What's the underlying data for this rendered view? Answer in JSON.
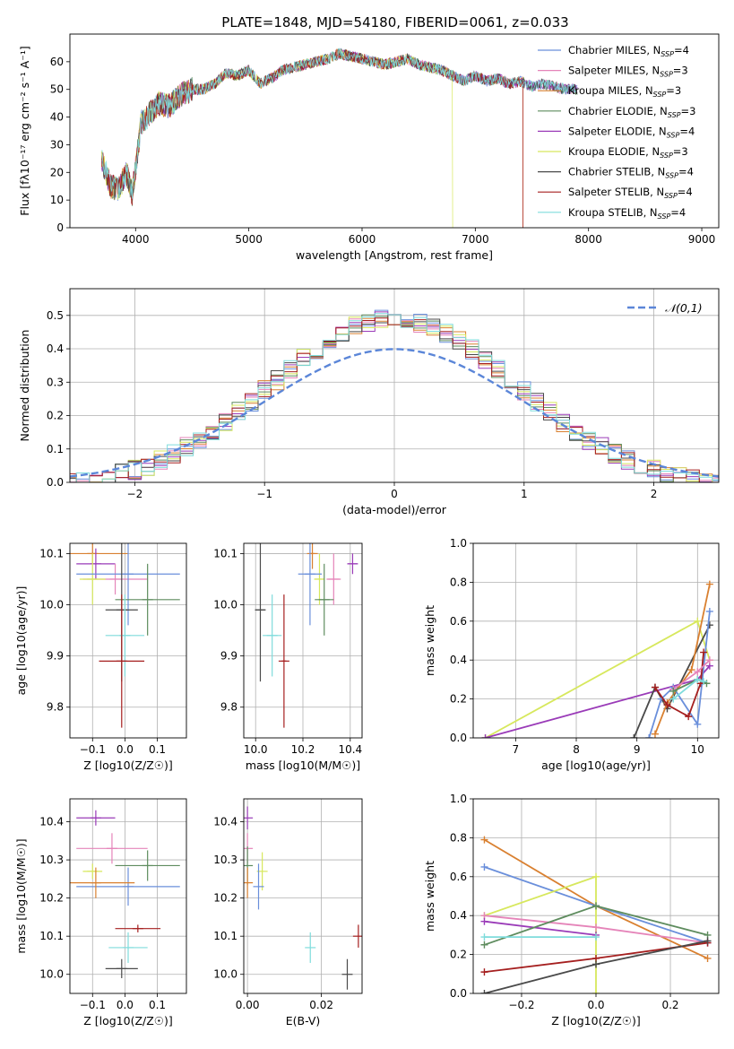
{
  "figure": {
    "title": "PLATE=1848, MJD=54180, FIBERID=0061, z=0.033"
  },
  "chart_data": [
    {
      "id": "spectrum",
      "type": "line",
      "xlabel": "wavelength [Angstrom, rest frame]",
      "ylabel": "Flux [fλ10⁻¹⁷ erg cm⁻² s⁻¹ A⁻¹]",
      "xlim": [
        3420,
        9150
      ],
      "ylim": [
        0,
        70
      ],
      "xticks": [
        4000,
        5000,
        6000,
        7000,
        8000,
        9000
      ],
      "yticks": [
        0,
        10,
        20,
        30,
        40,
        50,
        60
      ],
      "grid": false,
      "legend": "top-right",
      "anchors_x": [
        3700,
        3780,
        3850,
        3920,
        3970,
        4050,
        4100,
        4200,
        4300,
        4400,
        4500,
        4600,
        4700,
        4800,
        4900,
        5000,
        5100,
        5200,
        5300,
        5400,
        5500,
        5600,
        5700,
        5800,
        5900,
        6000,
        6100,
        6200,
        6300,
        6400,
        6500,
        6600,
        6700,
        6800,
        6900,
        7000,
        7100,
        7200,
        7300,
        7400,
        7500,
        7600,
        7700,
        7800,
        7900
      ],
      "anchors_y": [
        25,
        15,
        14,
        20,
        12,
        38,
        40,
        45,
        44,
        48,
        50,
        50,
        52,
        56,
        55,
        57,
        52,
        54,
        57,
        58,
        59,
        60,
        61,
        63,
        62,
        61,
        60,
        59,
        60,
        61,
        59,
        58,
        57,
        55,
        53,
        55,
        53,
        54,
        52,
        53,
        51,
        52,
        51,
        50,
        50
      ],
      "series": [
        {
          "name": "Chabrier MILES, N_SSP=4",
          "color": "#6a8fdb"
        },
        {
          "name": "Salpeter MILES, N_SSP=3",
          "color": "#e584b9"
        },
        {
          "name": "Kroupa MILES, N_SSP=3",
          "color": "#d98030"
        },
        {
          "name": "Chabrier ELODIE, N_SSP=3",
          "color": "#5e8c5e"
        },
        {
          "name": "Salpeter ELODIE, N_SSP=4",
          "color": "#9a3bb8"
        },
        {
          "name": "Kroupa ELODIE, N_SSP=3",
          "color": "#d7e85d"
        },
        {
          "name": "Chabrier STELIB, N_SSP=4",
          "color": "#4a4a4a"
        },
        {
          "name": "Salpeter STELIB, N_SSP=4",
          "color": "#a51f1f"
        },
        {
          "name": "Kroupa STELIB, N_SSP=4",
          "color": "#7fdcdc"
        }
      ],
      "series_extent": [
        {
          "xmin": 3700,
          "xmax": 7900
        },
        {
          "xmin": 3700,
          "xmax": 7900
        },
        {
          "xmin": 3700,
          "xmax": 7420
        },
        {
          "xmin": 3700,
          "xmax": 7900
        },
        {
          "xmin": 3700,
          "xmax": 7900
        },
        {
          "xmin": 3700,
          "xmax": 6800
        },
        {
          "xmin": 3700,
          "xmax": 7900
        },
        {
          "xmin": 3700,
          "xmax": 7420
        },
        {
          "xmin": 3700,
          "xmax": 7900
        }
      ],
      "legend_labels": [
        {
          "base": "Chabrier MILES, N",
          "sub": "SSP",
          "tail": "=4"
        },
        {
          "base": "Salpeter MILES, N",
          "sub": "SSP",
          "tail": "=3"
        },
        {
          "base": "Kroupa MILES, N",
          "sub": "SSP",
          "tail": "=3"
        },
        {
          "base": "Chabrier ELODIE, N",
          "sub": "SSP",
          "tail": "=3"
        },
        {
          "base": "Salpeter ELODIE, N",
          "sub": "SSP",
          "tail": "=4"
        },
        {
          "base": "Kroupa ELODIE, N",
          "sub": "SSP",
          "tail": "=3"
        },
        {
          "base": "Chabrier STELIB, N",
          "sub": "SSP",
          "tail": "=4"
        },
        {
          "base": "Salpeter STELIB, N",
          "sub": "SSP",
          "tail": "=4"
        },
        {
          "base": "Kroupa STELIB, N",
          "sub": "SSP",
          "tail": "=4"
        }
      ]
    },
    {
      "id": "residuals",
      "type": "line",
      "xlabel": "(data-model)/error",
      "ylabel": "Normed distribution",
      "xlim": [
        -2.5,
        2.5
      ],
      "ylim": [
        0,
        0.58
      ],
      "xticks": [
        -2,
        -1,
        0,
        1,
        2
      ],
      "yticks": [
        0.0,
        0.1,
        0.2,
        0.3,
        0.4,
        0.5
      ],
      "grid": true,
      "legend": "top-right",
      "legend_label": "𝒩(0,1)",
      "normal_color": "#5b86d8",
      "bin_width": 0.1
    },
    {
      "id": "age_vs_Z",
      "type": "scatter",
      "xlabel": "Z [log10(Z/Z☉)]",
      "ylabel": "age [log10(age/yr)]",
      "xlim": [
        -0.17,
        0.19
      ],
      "ylim": [
        9.74,
        10.12
      ],
      "xticks": [
        -0.1,
        0.0,
        0.1
      ],
      "yticks": [
        9.8,
        9.9,
        10.0,
        10.1
      ],
      "grid": true,
      "points": [
        {
          "color": "#d98030",
          "x": -0.1,
          "y": 10.1,
          "xerr": 0.11,
          "yerr": 0.02
        },
        {
          "color": "#9a3bb8",
          "x": -0.09,
          "y": 10.08,
          "xerr": 0.06,
          "yerr": 0.03
        },
        {
          "color": "#e584b9",
          "x": -0.03,
          "y": 10.05,
          "xerr": 0.1,
          "yerr": 0.03
        },
        {
          "color": "#d7e85d",
          "x": -0.1,
          "y": 10.05,
          "xerr": 0.04,
          "yerr": 0.05
        },
        {
          "color": "#6a8fdb",
          "x": 0.01,
          "y": 10.06,
          "xerr": 0.16,
          "yerr": 0.1
        },
        {
          "color": "#5e8c5e",
          "x": 0.07,
          "y": 10.01,
          "xerr": 0.1,
          "yerr": 0.07
        },
        {
          "color": "#4a4a4a",
          "x": -0.01,
          "y": 9.99,
          "xerr": 0.05,
          "yerr": 0.14
        },
        {
          "color": "#7fdcdc",
          "x": 0.0,
          "y": 9.94,
          "xerr": 0.06,
          "yerr": 0.08
        },
        {
          "color": "#a51f1f",
          "x": -0.01,
          "y": 9.89,
          "xerr": 0.07,
          "yerr": 0.13
        }
      ]
    },
    {
      "id": "age_vs_mass",
      "type": "scatter",
      "xlabel": "mass [log10(M/M☉)]",
      "ylabel": "",
      "xlim": [
        9.95,
        10.45
      ],
      "ylim": [
        9.74,
        10.12
      ],
      "xticks": [
        10.0,
        10.2,
        10.4
      ],
      "yticks": [
        9.8,
        9.9,
        10.0,
        10.1
      ],
      "grid": true,
      "points": [
        {
          "color": "#d98030",
          "x": 10.24,
          "y": 10.1,
          "xerr": 0.01,
          "yerr": 0.03
        },
        {
          "color": "#9a3bb8",
          "x": 10.41,
          "y": 10.08,
          "xerr": 0.02,
          "yerr": 0.02
        },
        {
          "color": "#e584b9",
          "x": 10.33,
          "y": 10.05,
          "xerr": 0.03,
          "yerr": 0.05
        },
        {
          "color": "#d7e85d",
          "x": 10.27,
          "y": 10.05,
          "xerr": 0.02,
          "yerr": 0.05
        },
        {
          "color": "#6a8fdb",
          "x": 10.23,
          "y": 10.06,
          "xerr": 0.05,
          "yerr": 0.1
        },
        {
          "color": "#5e8c5e",
          "x": 10.29,
          "y": 10.01,
          "xerr": 0.04,
          "yerr": 0.07
        },
        {
          "color": "#4a4a4a",
          "x": 10.02,
          "y": 9.99,
          "xerr": 0.02,
          "yerr": 0.14
        },
        {
          "color": "#7fdcdc",
          "x": 10.07,
          "y": 9.94,
          "xerr": 0.04,
          "yerr": 0.08
        },
        {
          "color": "#a51f1f",
          "x": 10.12,
          "y": 9.89,
          "xerr": 0.01,
          "yerr": 0.13
        }
      ]
    },
    {
      "id": "mass_weight_vs_age",
      "type": "line",
      "xlabel": "age [log10(age/yr)]",
      "ylabel": "mass weight",
      "xlim": [
        6.3,
        10.35
      ],
      "ylim": [
        0,
        1.0
      ],
      "xticks": [
        7,
        8,
        9,
        10
      ],
      "yticks": [
        0.0,
        0.2,
        0.4,
        0.6,
        0.8,
        1.0
      ],
      "grid": true,
      "series": [
        {
          "color": "#d7e85d",
          "x": [
            6.5,
            10.0,
            10.2
          ],
          "y": [
            0.0,
            0.6,
            0.4
          ]
        },
        {
          "color": "#9a3bb8",
          "x": [
            6.5,
            10.0,
            10.2
          ],
          "y": [
            0.0,
            0.3,
            0.37
          ]
        },
        {
          "color": "#4a4a4a",
          "x": [
            8.95,
            9.3,
            9.5,
            10.2
          ],
          "y": [
            0.0,
            0.26,
            0.15,
            0.58
          ]
        },
        {
          "color": "#d98030",
          "x": [
            9.3,
            9.5,
            9.9,
            10.2
          ],
          "y": [
            0.02,
            0.18,
            0.35,
            0.79
          ]
        },
        {
          "color": "#6a8fdb",
          "x": [
            9.2,
            9.4,
            9.6,
            10.0,
            10.2
          ],
          "y": [
            0.0,
            0.2,
            0.26,
            0.07,
            0.65
          ]
        },
        {
          "color": "#a51f1f",
          "x": [
            9.3,
            9.5,
            9.85,
            10.05,
            10.1
          ],
          "y": [
            0.26,
            0.17,
            0.11,
            0.28,
            0.44
          ]
        },
        {
          "color": "#e584b9",
          "x": [
            9.6,
            10.0,
            10.2
          ],
          "y": [
            0.25,
            0.34,
            0.4
          ]
        },
        {
          "color": "#5e8c5e",
          "x": [
            9.6,
            10.0,
            10.15
          ],
          "y": [
            0.24,
            0.3,
            0.28
          ]
        },
        {
          "color": "#7fdcdc",
          "x": [
            9.6,
            10.0,
            10.1
          ],
          "y": [
            0.2,
            0.3,
            0.29
          ]
        }
      ]
    },
    {
      "id": "mass_vs_Z",
      "type": "scatter",
      "xlabel": "Z [log10(Z/Z☉)]",
      "ylabel": "mass [log10(M/M☉)]",
      "xlim": [
        -0.17,
        0.19
      ],
      "ylim": [
        9.95,
        10.46
      ],
      "xticks": [
        -0.1,
        0.0,
        0.1
      ],
      "yticks": [
        10.0,
        10.1,
        10.2,
        10.3,
        10.4
      ],
      "grid": true,
      "points": [
        {
          "color": "#9a3bb8",
          "x": -0.09,
          "y": 10.41,
          "xerr": 0.06,
          "yerr": 0.02
        },
        {
          "color": "#e584b9",
          "x": -0.04,
          "y": 10.33,
          "xerr": 0.11,
          "yerr": 0.04
        },
        {
          "color": "#6a8fdb",
          "x": 0.01,
          "y": 10.23,
          "xerr": 0.16,
          "yerr": 0.05
        },
        {
          "color": "#5e8c5e",
          "x": 0.07,
          "y": 10.285,
          "xerr": 0.1,
          "yerr": 0.04
        },
        {
          "color": "#d7e85d",
          "x": -0.1,
          "y": 10.27,
          "xerr": 0.03,
          "yerr": 0.02
        },
        {
          "color": "#d98030",
          "x": -0.09,
          "y": 10.24,
          "xerr": 0.12,
          "yerr": 0.04
        },
        {
          "color": "#a51f1f",
          "x": 0.04,
          "y": 10.12,
          "xerr": 0.07,
          "yerr": 0.01
        },
        {
          "color": "#7fdcdc",
          "x": 0.01,
          "y": 10.07,
          "xerr": 0.06,
          "yerr": 0.04
        },
        {
          "color": "#4a4a4a",
          "x": -0.01,
          "y": 10.015,
          "xerr": 0.05,
          "yerr": 0.025
        }
      ]
    },
    {
      "id": "mass_vs_ebv",
      "type": "scatter",
      "xlabel": "E(B-V)",
      "ylabel": "",
      "xlim": [
        -0.001,
        0.031
      ],
      "ylim": [
        9.95,
        10.46
      ],
      "xticks": [
        0.0,
        0.02
      ],
      "yticks": [
        10.0,
        10.1,
        10.2,
        10.3,
        10.4
      ],
      "grid": true,
      "points": [
        {
          "color": "#9a3bb8",
          "x": 0.0,
          "y": 10.41,
          "xerr": 0.0,
          "yerr": 0.03
        },
        {
          "color": "#e584b9",
          "x": 0.0,
          "y": 10.33,
          "xerr": 0.0,
          "yerr": 0.04
        },
        {
          "color": "#5e8c5e",
          "x": 0.0,
          "y": 10.285,
          "xerr": 0.0,
          "yerr": 0.05
        },
        {
          "color": "#d7e85d",
          "x": 0.004,
          "y": 10.27,
          "xerr": 0.0,
          "yerr": 0.05
        },
        {
          "color": "#d98030",
          "x": 0.0,
          "y": 10.24,
          "xerr": 0.0,
          "yerr": 0.04
        },
        {
          "color": "#6a8fdb",
          "x": 0.003,
          "y": 10.23,
          "xerr": 0.0,
          "yerr": 0.06
        },
        {
          "color": "#7fdcdc",
          "x": 0.017,
          "y": 10.07,
          "xerr": 0.0,
          "yerr": 0.04
        },
        {
          "color": "#a51f1f",
          "x": 0.03,
          "y": 10.1,
          "xerr": 0.0,
          "yerr": 0.03
        },
        {
          "color": "#4a4a4a",
          "x": 0.027,
          "y": 10.0,
          "xerr": 0.0,
          "yerr": 0.04
        }
      ]
    },
    {
      "id": "mass_weight_vs_Z",
      "type": "line",
      "xlabel": "Z [log10(Z/Z☉)]",
      "ylabel": "mass weight",
      "xlim": [
        -0.33,
        0.33
      ],
      "ylim": [
        0,
        1.0
      ],
      "xticks": [
        -0.2,
        0.0,
        0.2
      ],
      "yticks": [
        0.0,
        0.2,
        0.4,
        0.6,
        0.8,
        1.0
      ],
      "grid": true,
      "series": [
        {
          "color": "#d98030",
          "x": [
            -0.3,
            0.0,
            0.3
          ],
          "y": [
            0.79,
            0.45,
            0.18
          ]
        },
        {
          "color": "#6a8fdb",
          "x": [
            -0.3,
            0.0,
            0.3
          ],
          "y": [
            0.65,
            0.45,
            0.26
          ]
        },
        {
          "color": "#d7e85d",
          "x": [
            -0.3,
            0.0,
            0.0
          ],
          "y": [
            0.4,
            0.6,
            0.0
          ]
        },
        {
          "color": "#e584b9",
          "x": [
            -0.3,
            0.0,
            0.3
          ],
          "y": [
            0.4,
            0.34,
            0.26
          ]
        },
        {
          "color": "#9a3bb8",
          "x": [
            -0.3,
            0.0
          ],
          "y": [
            0.37,
            0.3
          ]
        },
        {
          "color": "#5e8c5e",
          "x": [
            -0.3,
            0.0,
            0.3
          ],
          "y": [
            0.25,
            0.45,
            0.3
          ]
        },
        {
          "color": "#7fdcdc",
          "x": [
            -0.3,
            0.0
          ],
          "y": [
            0.29,
            0.29
          ]
        },
        {
          "color": "#a51f1f",
          "x": [
            -0.3,
            0.0,
            0.3
          ],
          "y": [
            0.11,
            0.18,
            0.26
          ]
        },
        {
          "color": "#4a4a4a",
          "x": [
            -0.3,
            0.0,
            0.3
          ],
          "y": [
            0.0,
            0.15,
            0.27
          ]
        }
      ]
    }
  ]
}
